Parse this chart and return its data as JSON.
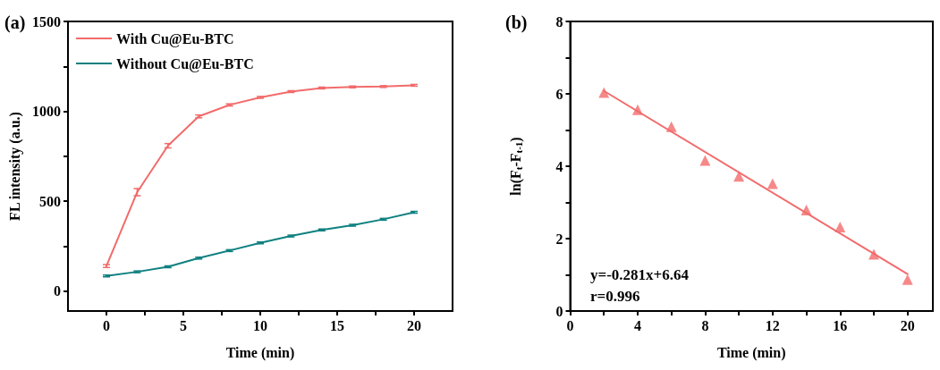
{
  "chart_data": [
    {
      "type": "line",
      "title": "(a)",
      "xlabel": "Time (min)",
      "ylabel": "FL intensity (a.u.)",
      "x": [
        0,
        2,
        4,
        6,
        8,
        10,
        12,
        14,
        16,
        18,
        20
      ],
      "xlim": [
        -2.5,
        22.5
      ],
      "xticks": [
        0,
        {
          "value": 2.5,
          "label": null
        },
        5,
        {
          "value": 7.5,
          "label": null
        },
        10,
        {
          "value": 12.5,
          "label": null
        },
        15,
        {
          "value": 17.5,
          "label": null
        },
        20
      ],
      "ylim": [
        -110,
        1500
      ],
      "yticks": [
        0,
        {
          "value": 250,
          "label": null
        },
        500,
        {
          "value": 750,
          "label": null
        },
        1000,
        {
          "value": 1250,
          "label": null
        },
        1500
      ],
      "legend": "top left",
      "marker": "none",
      "line_style": "solid",
      "grid": false,
      "series": [
        {
          "name": "With Cu@Eu-BTC",
          "color": "#f26b6b",
          "values": [
            140,
            551,
            809,
            972,
            1036,
            1078,
            1110,
            1130,
            1136,
            1138,
            1145
          ],
          "errors": [
            8,
            20,
            12,
            8,
            6,
            5,
            5,
            5,
            5,
            5,
            5
          ]
        },
        {
          "name": "Without Cu@Eu-BTC",
          "color": "#0e8080",
          "values": [
            85,
            108,
            136,
            184,
            226,
            269,
            307,
            341,
            367,
            400,
            439
          ],
          "errors": [
            5,
            5,
            5,
            5,
            5,
            5,
            5,
            5,
            5,
            5,
            5
          ]
        }
      ]
    },
    {
      "type": "scatter",
      "title": "(b)",
      "xlabel": "Time (min)",
      "ylabel": "ln(F$_{t}$-F$_{t-1}$)",
      "xlim": [
        0,
        21.5
      ],
      "xticks": [
        0,
        {
          "value": 2,
          "label": null
        },
        4,
        {
          "value": 6,
          "label": null
        },
        8,
        {
          "value": 10,
          "label": null
        },
        12,
        {
          "value": 14,
          "label": null
        },
        16,
        {
          "value": 18,
          "label": null
        },
        20
      ],
      "ylim": [
        0,
        8
      ],
      "yticks": [
        0,
        {
          "value": 1,
          "label": null
        },
        2,
        {
          "value": 3,
          "label": null
        },
        4,
        {
          "value": 5,
          "label": null
        },
        6,
        {
          "value": 7,
          "label": null
        },
        8
      ],
      "marker": "triangle",
      "grid": false,
      "legend": false,
      "annotations": [
        "y=-0.281x+6.64",
        "r=0.996"
      ],
      "series": [
        {
          "color": "#f26b6b",
          "x": [
            2,
            4,
            6,
            8,
            10,
            12,
            14,
            16,
            18,
            20
          ],
          "values": [
            6.04,
            5.56,
            5.09,
            4.16,
            3.72,
            3.52,
            2.79,
            2.32,
            1.57,
            0.87
          ]
        },
        {
          "type": "line",
          "marker": "none",
          "color": "#f26b6b",
          "x": [
            2,
            20
          ],
          "values": [
            6.08,
            1.02
          ]
        }
      ]
    }
  ]
}
